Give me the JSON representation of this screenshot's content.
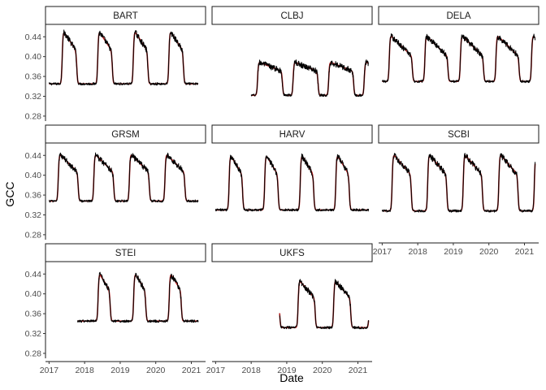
{
  "chart_data": {
    "type": "line",
    "xlabel": "Date",
    "ylabel": "GCC",
    "x_ticks": [
      "2017",
      "2018",
      "2019",
      "2020",
      "2021"
    ],
    "y_ticks": [
      "0.28",
      "0.32",
      "0.36",
      "0.40",
      "0.44"
    ],
    "xlim": [
      2016.9,
      2021.4
    ],
    "ylim": [
      0.27,
      0.465
    ],
    "colors": {
      "observed": "#000000",
      "fitted": "#b01c1c"
    },
    "panels": [
      {
        "site": "BART",
        "start": 2017.0,
        "end": 2021.2,
        "base": 0.345,
        "peak": 0.455,
        "late": 0.41,
        "green_up": 0.37,
        "senescence": 0.78,
        "seasons": [
          2017,
          2018,
          2019,
          2020
        ]
      },
      {
        "site": "CLBJ",
        "start": 2018.0,
        "end": 2021.3,
        "base": 0.322,
        "peak": 0.39,
        "late": 0.37,
        "green_up": 0.18,
        "senescence": 0.88,
        "seasons": [
          2019,
          2020,
          2021
        ]
      },
      {
        "site": "DELA",
        "start": 2017.0,
        "end": 2021.3,
        "base": 0.35,
        "peak": 0.445,
        "late": 0.4,
        "green_up": 0.2,
        "senescence": 0.85,
        "seasons": [
          2017,
          2018,
          2019,
          2020
        ]
      },
      {
        "site": "GRSM",
        "start": 2017.0,
        "end": 2021.2,
        "base": 0.348,
        "peak": 0.445,
        "late": 0.405,
        "green_up": 0.26,
        "senescence": 0.82,
        "seasons": [
          2017,
          2018,
          2019,
          2020
        ]
      },
      {
        "site": "HARV",
        "start": 2017.0,
        "end": 2021.3,
        "base": 0.33,
        "peak": 0.445,
        "late": 0.4,
        "green_up": 0.38,
        "senescence": 0.76,
        "seasons": [
          2017,
          2018,
          2019,
          2020
        ]
      },
      {
        "site": "SCBI",
        "start": 2017.0,
        "end": 2021.3,
        "base": 0.328,
        "peak": 0.445,
        "late": 0.4,
        "green_up": 0.28,
        "senescence": 0.82,
        "seasons": [
          2017,
          2018,
          2019,
          2020
        ]
      },
      {
        "site": "STEI",
        "start": 2017.8,
        "end": 2021.2,
        "base": 0.345,
        "peak": 0.445,
        "late": 0.405,
        "green_up": 0.38,
        "senescence": 0.72,
        "seasons": [
          2018,
          2019,
          2020
        ]
      },
      {
        "site": "UKFS",
        "start": 2018.8,
        "end": 2021.3,
        "base": 0.332,
        "peak": 0.43,
        "late": 0.39,
        "green_up": 0.32,
        "senescence": 0.8,
        "seasons": [
          2019,
          2020
        ]
      }
    ]
  }
}
